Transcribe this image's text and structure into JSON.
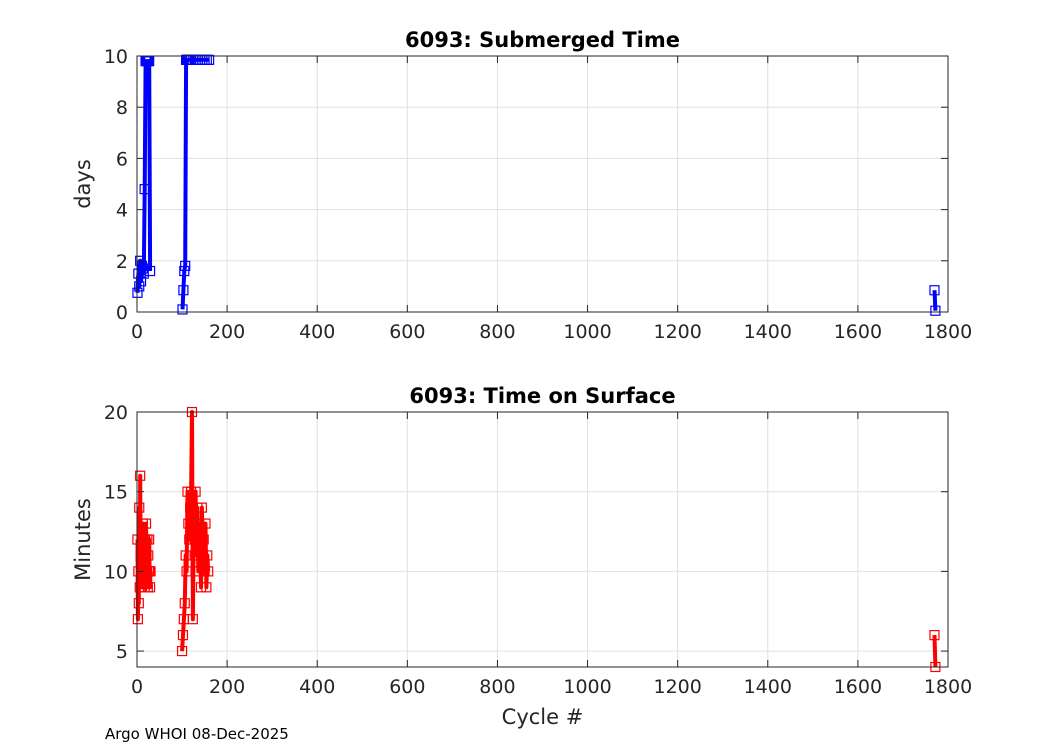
{
  "footer": "Argo WHOI 08-Dec-2025",
  "chart_data": [
    {
      "type": "line",
      "title": "6093: Submerged Time",
      "xlabel": "",
      "ylabel": "days",
      "xlim": [
        0,
        1800
      ],
      "ylim": [
        0,
        10
      ],
      "xticks": [
        0,
        200,
        400,
        600,
        800,
        1000,
        1200,
        1400,
        1600,
        1800
      ],
      "yticks": [
        0,
        2,
        4,
        6,
        8,
        10
      ],
      "grid": true,
      "color": "#0000ff",
      "series": [
        {
          "x": [
            1,
            3,
            5,
            7,
            9,
            11,
            13,
            15,
            17,
            19,
            21,
            23,
            25,
            27,
            29,
            101,
            103,
            105,
            107,
            109,
            111,
            113,
            115,
            117,
            120,
            125,
            130,
            135,
            140,
            145,
            150,
            155,
            160,
            1770,
            1772
          ],
          "y": [
            0.75,
            1.5,
            1.0,
            2.0,
            1.2,
            1.8,
            1.7,
            1.5,
            4.8,
            9.8,
            9.8,
            9.8,
            9.8,
            9.8,
            1.6,
            0.1,
            0.85,
            1.6,
            1.8,
            9.85,
            9.85,
            9.85,
            9.85,
            9.85,
            9.85,
            9.85,
            9.85,
            9.85,
            9.85,
            9.85,
            9.85,
            9.85,
            9.85,
            0.85,
            0.05
          ]
        }
      ]
    },
    {
      "type": "line",
      "title": "6093: Time on Surface",
      "xlabel": "Cycle #",
      "ylabel": "Minutes",
      "xlim": [
        0,
        1800
      ],
      "ylim": [
        4,
        20
      ],
      "xticks": [
        0,
        200,
        400,
        600,
        800,
        1000,
        1200,
        1400,
        1600,
        1800
      ],
      "yticks": [
        5,
        10,
        15,
        20
      ],
      "grid": true,
      "color": "#ff0000",
      "series": [
        {
          "x": [
            1,
            2,
            3,
            4,
            5,
            6,
            7,
            8,
            9,
            10,
            11,
            12,
            13,
            14,
            15,
            16,
            17,
            18,
            19,
            20,
            21,
            22,
            23,
            24,
            25,
            26,
            27,
            28,
            29,
            30,
            100,
            102,
            104,
            106,
            108,
            110,
            112,
            114,
            116,
            118,
            120,
            122,
            124,
            126,
            128,
            130,
            132,
            134,
            136,
            138,
            140,
            142,
            144,
            146,
            148,
            150,
            152,
            154,
            156,
            158,
            1770,
            1772
          ],
          "y": [
            12,
            7,
            10,
            8,
            14,
            9,
            16,
            11,
            10,
            12,
            9,
            11,
            13,
            10,
            12,
            11,
            9,
            12,
            10,
            13,
            11,
            10,
            12,
            9,
            11,
            10,
            12,
            10,
            9,
            10,
            5,
            6,
            7,
            8,
            11,
            10,
            15,
            13,
            12,
            14,
            15,
            20,
            7,
            13,
            12,
            15,
            11,
            14,
            10,
            13,
            12,
            9,
            14,
            11,
            12,
            10,
            13,
            9,
            11,
            10,
            6,
            4
          ]
        }
      ]
    }
  ]
}
